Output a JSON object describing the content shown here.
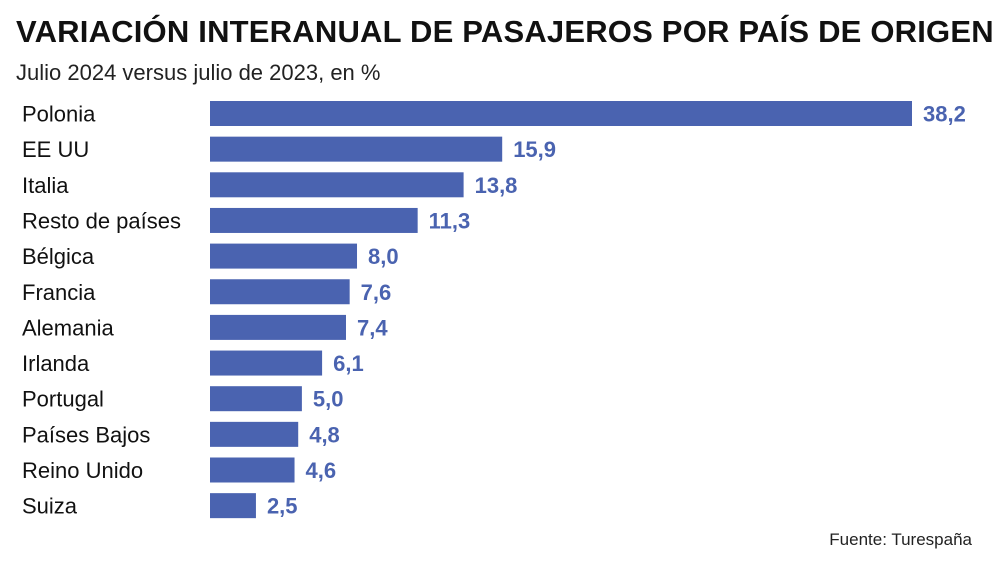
{
  "header": {
    "title": "VARIACIÓN INTERANUAL DE PASAJEROS POR PAÍS DE ORIGEN",
    "subtitle": "Julio 2024 versus julio de 2023, en %"
  },
  "footer": {
    "source": "Fuente: Turespaña"
  },
  "chart_data": {
    "type": "bar",
    "orientation": "horizontal",
    "title": "VARIACIÓN INTERANUAL DE PASAJEROS POR PAÍS DE ORIGEN",
    "subtitle": "Julio 2024 versus julio de 2023, en %",
    "xlabel": "",
    "ylabel": "",
    "grid": false,
    "legend": "none",
    "bar_color": "#4a63b0",
    "label_color": "#4a63b0",
    "xlim": [
      0,
      38.2
    ],
    "categories": [
      "Polonia",
      "EE UU",
      "Italia",
      "Resto de países",
      "Bélgica",
      "Francia",
      "Alemania",
      "Irlanda",
      "Portugal",
      "Países Bajos",
      "Reino Unido",
      "Suiza"
    ],
    "values": [
      38.2,
      15.9,
      13.8,
      11.3,
      8.0,
      7.6,
      7.4,
      6.1,
      5.0,
      4.8,
      4.6,
      2.5
    ],
    "value_labels": [
      "38,2",
      "15,9",
      "13,8",
      "11,3",
      "8,0",
      "7,6",
      "7,4",
      "6,1",
      "5,0",
      "4,8",
      "4,6",
      "2,5"
    ]
  }
}
